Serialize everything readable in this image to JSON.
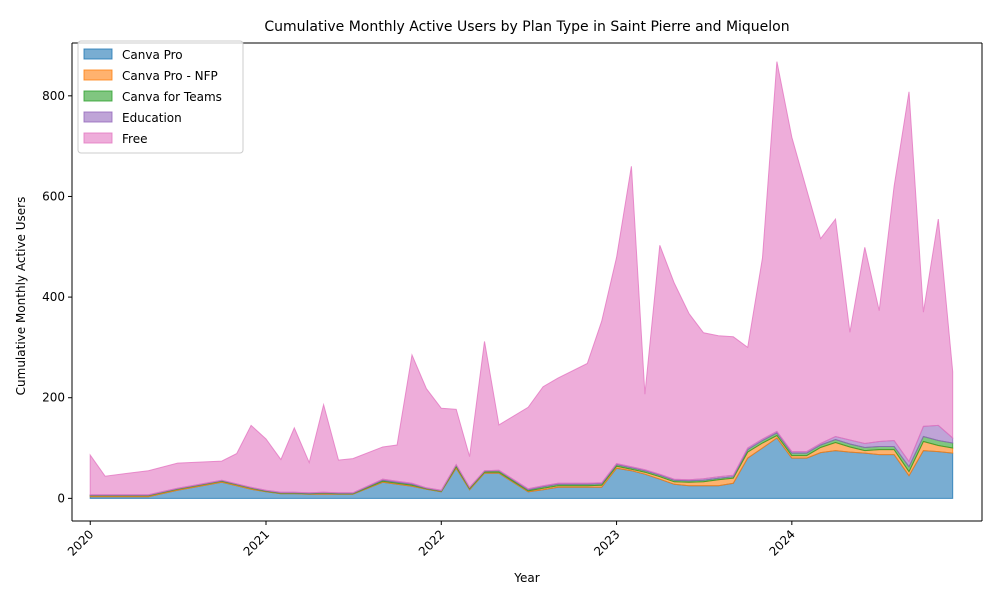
{
  "chart_data": {
    "type": "area",
    "stacked": true,
    "title": "Cumulative Monthly Active Users by Plan Type in Saint Pierre and Miquelon",
    "xlabel": "Year",
    "ylabel": "Cumulative Monthly Active Users",
    "xlim": [
      "2019-11-24",
      "2025-01-31"
    ],
    "ylim": [
      -45,
      905
    ],
    "x_ticks": [
      "2020",
      "2021",
      "2022",
      "2023",
      "2024"
    ],
    "x_tick_dates": [
      "2020-01-01",
      "2021-01-01",
      "2022-01-01",
      "2023-01-01",
      "2024-01-01"
    ],
    "y_ticks": [
      0,
      200,
      400,
      600,
      800
    ],
    "grid": false,
    "legend_position": "upper-left",
    "x": [
      "2020-01-01",
      "2020-02-01",
      "2020-05-01",
      "2020-07-01",
      "2020-10-01",
      "2020-11-01",
      "2020-12-01",
      "2021-01-01",
      "2021-02-01",
      "2021-03-01",
      "2021-04-01",
      "2021-05-01",
      "2021-06-01",
      "2021-07-01",
      "2021-09-01",
      "2021-10-01",
      "2021-11-01",
      "2021-12-01",
      "2022-01-01",
      "2022-02-01",
      "2022-03-01",
      "2022-04-01",
      "2022-05-01",
      "2022-07-01",
      "2022-08-01",
      "2022-09-01",
      "2022-11-01",
      "2022-12-01",
      "2023-01-01",
      "2023-02-01",
      "2023-03-01",
      "2023-04-01",
      "2023-05-01",
      "2023-06-01",
      "2023-07-01",
      "2023-08-01",
      "2023-09-01",
      "2023-10-01",
      "2023-11-01",
      "2023-12-01",
      "2024-01-01",
      "2024-02-01",
      "2024-03-01",
      "2024-04-01",
      "2024-05-01",
      "2024-06-01",
      "2024-07-01",
      "2024-08-01",
      "2024-09-01",
      "2024-10-01",
      "2024-11-01",
      "2024-12-01"
    ],
    "series": [
      {
        "name": "Canva Pro",
        "color": "#1f77b4",
        "values": [
          3,
          3,
          3,
          16,
          32,
          25,
          18,
          13,
          9,
          9,
          8,
          8,
          8,
          8,
          32,
          28,
          24,
          18,
          13,
          60,
          17,
          50,
          50,
          13,
          17,
          22,
          22,
          22,
          60,
          55,
          48,
          38,
          28,
          25,
          25,
          25,
          30,
          80,
          100,
          120,
          80,
          80,
          91,
          95,
          92,
          90,
          87,
          87,
          45,
          95,
          93,
          90
        ]
      },
      {
        "name": "Canva Pro - NFP",
        "color": "#ff7f0e",
        "values": [
          2,
          2,
          2,
          2,
          2,
          2,
          2,
          1,
          1,
          1,
          1,
          2,
          1,
          1,
          2,
          2,
          2,
          1,
          1,
          3,
          2,
          2,
          2,
          2,
          3,
          3,
          3,
          4,
          4,
          3,
          4,
          5,
          5,
          7,
          8,
          12,
          10,
          12,
          10,
          5,
          5,
          5,
          10,
          16,
          10,
          5,
          10,
          10,
          8,
          18,
          12,
          10
        ]
      },
      {
        "name": "Canva for Teams",
        "color": "#2ca02c",
        "values": [
          1,
          1,
          1,
          1,
          1,
          1,
          1,
          1,
          1,
          1,
          1,
          1,
          1,
          1,
          2,
          2,
          2,
          1,
          1,
          3,
          2,
          2,
          3,
          2,
          3,
          3,
          3,
          3,
          3,
          3,
          3,
          3,
          3,
          3,
          3,
          3,
          3,
          5,
          5,
          5,
          5,
          5,
          5,
          6,
          6,
          6,
          6,
          6,
          10,
          10,
          10,
          10
        ]
      },
      {
        "name": "Education",
        "color": "#9467bd",
        "values": [
          1,
          1,
          1,
          1,
          1,
          1,
          1,
          1,
          1,
          1,
          1,
          1,
          1,
          1,
          2,
          2,
          2,
          1,
          1,
          1,
          1,
          1,
          1,
          2,
          2,
          2,
          2,
          2,
          2,
          2,
          2,
          2,
          2,
          2,
          3,
          3,
          3,
          3,
          3,
          3,
          3,
          3,
          3,
          6,
          8,
          8,
          10,
          12,
          10,
          20,
          30,
          10
        ]
      },
      {
        "name": "Free",
        "color": "#e377c2",
        "values": [
          79,
          37,
          48,
          50,
          38,
          60,
          123,
          102,
          65,
          128,
          60,
          174,
          65,
          68,
          64,
          72,
          255,
          197,
          163,
          110,
          61,
          257,
          90,
          162,
          197,
          209,
          238,
          321,
          410,
          597,
          150,
          455,
          390,
          330,
          290,
          280,
          275,
          200,
          360,
          735,
          625,
          520,
          407,
          432,
          214,
          390,
          260,
          505,
          735,
          227,
          410,
          132
        ]
      }
    ]
  }
}
